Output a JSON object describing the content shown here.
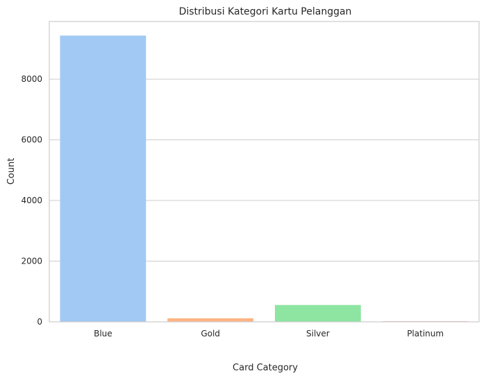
{
  "chart_data": {
    "type": "bar",
    "title": "Distribusi Kategori Kartu Pelanggan",
    "xlabel": "Card Category",
    "ylabel": "Count",
    "categories": [
      "Blue",
      "Gold",
      "Silver",
      "Platinum"
    ],
    "values": [
      9436,
      116,
      555,
      20
    ],
    "colors": [
      "#a1c9f4",
      "#ffb482",
      "#8de5a1",
      "#ff9f9b"
    ],
    "ylim": [
      0,
      9900
    ],
    "yticks": [
      0,
      2000,
      4000,
      6000,
      8000
    ],
    "grid": "y"
  }
}
